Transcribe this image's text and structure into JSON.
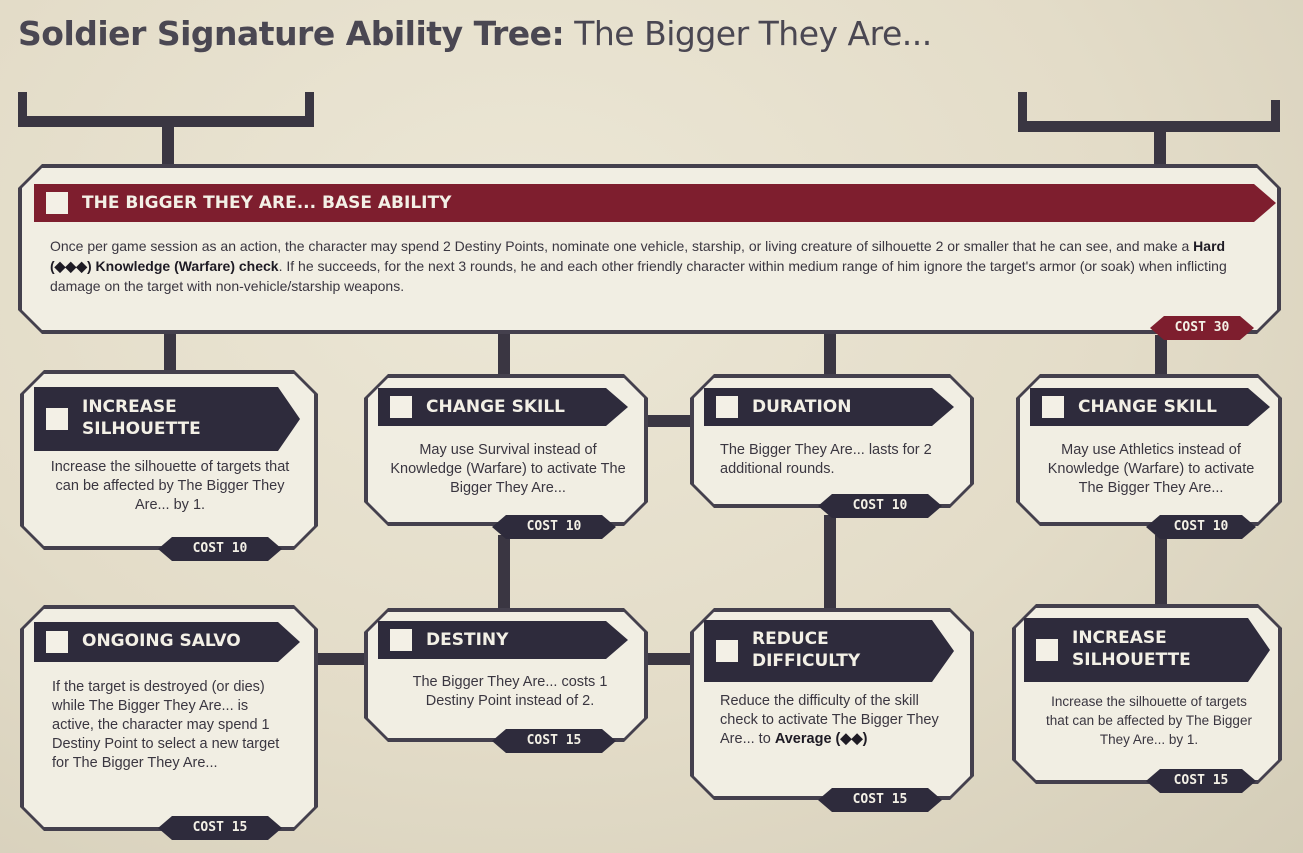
{
  "title": {
    "bold_part": "Soldier Signature Ability Tree:",
    "regular_part": "The Bigger They Are..."
  },
  "base": {
    "header": "THE BIGGER THEY ARE... BASE ABILITY",
    "text_1": "Once per game session as an action, the character may spend 2 Destiny Points, nominate one vehicle, starship, or living creature of silhouette 2 or smaller that he can see, and make a",
    "text_bold": "Hard (◆◆◆) Knowledge (Warfare) check",
    "text_2": ". If he succeeds, for the next 3 rounds, he and each other friendly character within medium range of him ignore the target's armor (or soak) when inflicting damage on the target with non-vehicle/starship weapons.",
    "cost": "COST 30"
  },
  "row1": [
    {
      "header": "INCREASE SILHOUETTE",
      "text": "Increase the silhouette of targets that can be affected by The Bigger They Are... by 1.",
      "cost": "COST 10"
    },
    {
      "header": "CHANGE SKILL",
      "text": "May use Survival instead of Knowledge (Warfare) to activate The Bigger They Are...",
      "cost": "COST 10"
    },
    {
      "header": "DURATION",
      "text": "The Bigger They Are... lasts for 2 additional rounds.",
      "cost": "COST 10"
    },
    {
      "header": "CHANGE SKILL",
      "text": "May use Athletics instead of Knowledge (Warfare) to activate The Bigger They Are...",
      "cost": "COST 10"
    }
  ],
  "row2": [
    {
      "header": "ONGOING SALVO",
      "text": "If the target is destroyed (or dies) while The Bigger They Are... is active, the character may spend 1 Destiny Point to select a new target for The Bigger They Are...",
      "cost": "COST 15"
    },
    {
      "header": "DESTINY",
      "text": "The Bigger They Are... costs 1 Destiny Point instead of 2.",
      "cost": "COST 15"
    },
    {
      "header": "REDUCE DIFFICULTY",
      "text": "Reduce the difficulty of the skill check to activate The Bigger They Are... to",
      "text_bold": "Average (◆◆)",
      "cost": "COST 15"
    },
    {
      "header": "INCREASE SILHOUETTE",
      "text": "Increase the silhouette of targets that can be affected by The Bigger They Are... by 1.",
      "cost": "COST 15"
    }
  ],
  "colors": {
    "card_border": "#44404d",
    "header_dark": "#2e2b3c",
    "header_red": "#7e1e2e",
    "paper": "#f1eee3"
  }
}
